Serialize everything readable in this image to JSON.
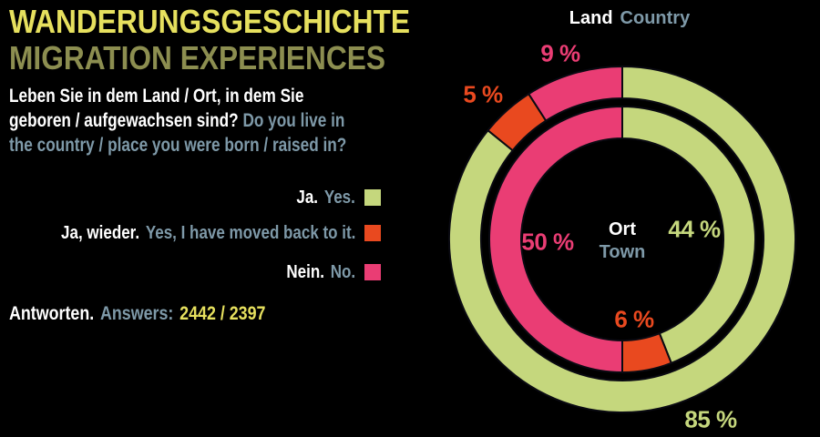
{
  "header": {
    "title_de": "WANDERUNGSGESCHICHTE",
    "title_en": "MIGRATION EXPERIENCES"
  },
  "question": {
    "de_line1": "Leben Sie in dem Land / Ort, in dem Sie",
    "de_line2": "geboren / aufgewachsen sind?",
    "en_part1": "Do you live in",
    "en_line2": "the country / place you were born / raised in?"
  },
  "legend": {
    "items": [
      {
        "de": "Ja.",
        "en": "Yes.",
        "color": "#C5D77D"
      },
      {
        "de": "Ja, wieder.",
        "en": "Yes, I have moved back to it.",
        "color": "#E9491F"
      },
      {
        "de": "Nein.",
        "en": "No.",
        "color": "#EA3D74"
      }
    ]
  },
  "answers": {
    "de": "Antworten.",
    "en": "Answers:",
    "values": "2442 / 2397"
  },
  "colors": {
    "background": "#000000",
    "title_de": "#E6E05E",
    "title_en": "#8C8E50",
    "german_text": "#FFFFFF",
    "english_text": "#7E99A8",
    "numbers_yellow": "#E6E05E",
    "yes_green": "#C5D77D",
    "moved_back_orange": "#E9491F",
    "no_pink": "#EA3D74"
  },
  "chart_data": {
    "type": "donut",
    "unit": "%",
    "legend_position": "left",
    "rings": [
      {
        "id": "outer",
        "label_de": "Land",
        "label_en": "Country",
        "segments": [
          {
            "name": "ja",
            "value": 85,
            "label": "85 %",
            "color": "#C5D77D"
          },
          {
            "name": "ja-wieder",
            "value": 5,
            "label": "5 %",
            "color": "#E9491F"
          },
          {
            "name": "nein",
            "value": 9,
            "label": "9 %",
            "color": "#EA3D74"
          }
        ]
      },
      {
        "id": "inner",
        "label_de": "Ort",
        "label_en": "Town",
        "segments": [
          {
            "name": "ja",
            "value": 44,
            "label": "44 %",
            "color": "#C5D77D"
          },
          {
            "name": "ja-wieder",
            "value": 6,
            "label": "6 %",
            "color": "#E9491F"
          },
          {
            "name": "nein",
            "value": 50,
            "label": "50 %",
            "color": "#EA3D74"
          }
        ]
      }
    ]
  }
}
